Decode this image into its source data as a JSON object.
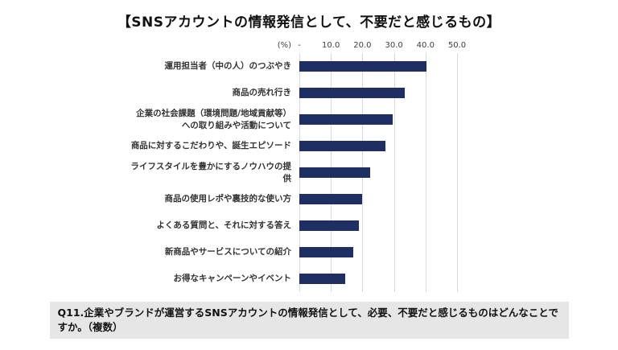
{
  "page": {
    "title": "【SNSアカウントの情報発信として、不要だと感じるもの】",
    "footer_note": "Q11.企業やブランドが運営するSNSアカウントの情報発信として、必要、不要だと感じるものはどんなことですか。（複数）"
  },
  "chart_data": {
    "type": "bar",
    "orientation": "horizontal",
    "title": "【SNSアカウントの情報発信として、不要だと感じるもの】",
    "unit_label": "(%)",
    "categories": [
      "運用担当者（中の人）のつぶやき",
      "商品の売れ行き",
      "企業の社会課題（環境問題/地域貢献等）への取り組みや活動について",
      "商品に対するこだわりや、誕生エピソード",
      "ライフスタイルを豊かにするノウハウの提供",
      "商品の使用レポや裏技的な使い方",
      "よくある質問と、それに対する答え",
      "新商品やサービスについての紹介",
      "お得なキャンペーンやイベント"
    ],
    "values": [
      40.3,
      33.5,
      29.5,
      27.4,
      22.4,
      20.0,
      19.0,
      17.2,
      14.6
    ],
    "xlim": [
      0,
      50
    ],
    "xtick_values": [
      0,
      10,
      20,
      30,
      40,
      50
    ],
    "xtick_labels": [
      "-",
      "10.0",
      "20.0",
      "30.0",
      "40.0",
      "50.0"
    ],
    "grid": true,
    "legend": false,
    "bar_color": "#1F2F64",
    "gridline_color": "#D9D9D9"
  },
  "styles": {
    "footer_bg": "#E6E6E6"
  }
}
